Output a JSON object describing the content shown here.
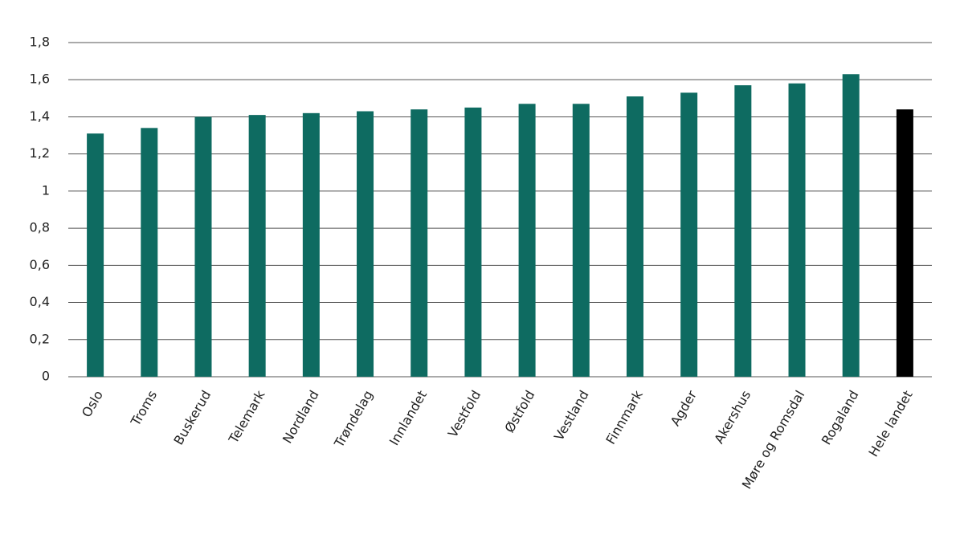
{
  "chart_data": {
    "type": "bar",
    "categories": [
      "Oslo",
      "Troms",
      "Buskerud",
      "Telemark",
      "Nordland",
      "Trøndelag",
      "Innlandet",
      "Vestfold",
      "Østfold",
      "Vestland",
      "Finnmark",
      "Agder",
      "Akershus",
      "Møre og Romsdal",
      "Rogaland",
      "Hele landet"
    ],
    "values": [
      1.31,
      1.34,
      1.4,
      1.41,
      1.42,
      1.43,
      1.44,
      1.45,
      1.47,
      1.47,
      1.51,
      1.53,
      1.57,
      1.58,
      1.63,
      1.44
    ],
    "colors": [
      "#0e6b61",
      "#0e6b61",
      "#0e6b61",
      "#0e6b61",
      "#0e6b61",
      "#0e6b61",
      "#0e6b61",
      "#0e6b61",
      "#0e6b61",
      "#0e6b61",
      "#0e6b61",
      "#0e6b61",
      "#0e6b61",
      "#0e6b61",
      "#0e6b61",
      "#000000"
    ],
    "ylim": [
      0,
      1.8
    ],
    "yticks": [
      0,
      {
        "value": 0.2,
        "label": "0,2"
      },
      {
        "value": 0.4,
        "label": "0,4"
      },
      {
        "value": 0.6,
        "label": "0,6"
      },
      {
        "value": 0.8,
        "label": "0,8"
      },
      1,
      {
        "value": 1.2,
        "label": "1,2"
      },
      {
        "value": 1.4,
        "label": "1,4"
      },
      {
        "value": 1.6,
        "label": "1,6"
      },
      {
        "value": 1.8,
        "label": "1,8"
      }
    ],
    "grid": true
  }
}
